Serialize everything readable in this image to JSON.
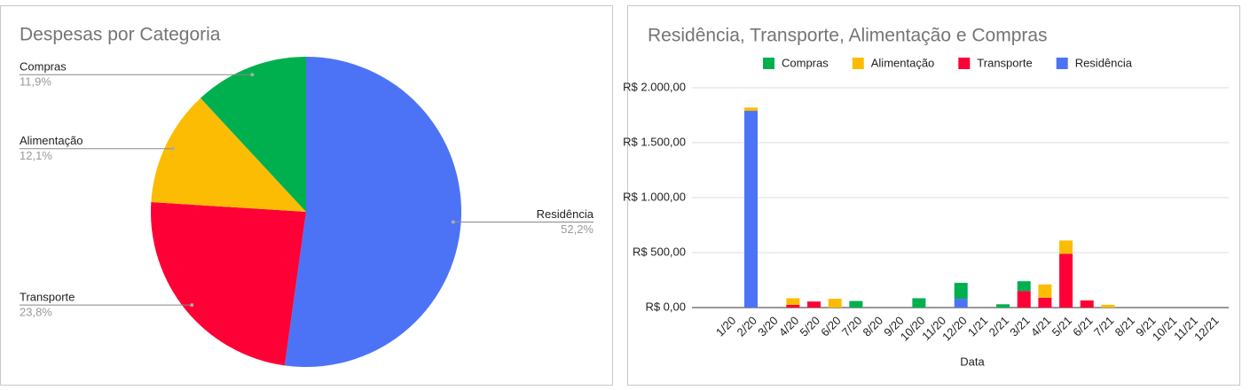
{
  "chart_data": [
    {
      "type": "pie",
      "title": "Despesas por Categoria",
      "categories": [
        "Residência",
        "Transporte",
        "Alimentação",
        "Compras"
      ],
      "values": [
        52.2,
        23.8,
        12.1,
        11.9
      ],
      "value_labels": [
        "52,2%",
        "23,8%",
        "12,1%",
        "11,9%"
      ],
      "colors": [
        "#4c73f6",
        "#fe0036",
        "#fcbc04",
        "#00b04f"
      ]
    },
    {
      "type": "bar",
      "stacked": true,
      "title": "Residência, Transporte, Alimentação e Compras",
      "x_label": "Data",
      "categories": [
        "1/20",
        "2/20",
        "3/20",
        "4/20",
        "5/20",
        "6/20",
        "7/20",
        "8/20",
        "9/20",
        "10/20",
        "11/20",
        "12/20",
        "1/21",
        "2/21",
        "3/21",
        "4/21",
        "5/21",
        "6/21",
        "7/21",
        "8/21",
        "9/21",
        "10/21",
        "11/21",
        "12/21"
      ],
      "series": [
        {
          "name": "Residência",
          "color": "#4c73f6",
          "values": [
            0,
            1790,
            0,
            0,
            0,
            0,
            0,
            0,
            0,
            0,
            0,
            80,
            0,
            0,
            0,
            0,
            0,
            0,
            0,
            0,
            0,
            0,
            0,
            0
          ]
        },
        {
          "name": "Transporte",
          "color": "#fe0036",
          "values": [
            0,
            0,
            0,
            25,
            55,
            0,
            0,
            0,
            0,
            0,
            0,
            0,
            0,
            0,
            150,
            90,
            490,
            65,
            0,
            0,
            0,
            0,
            0,
            0
          ]
        },
        {
          "name": "Alimentação",
          "color": "#fcbc04",
          "values": [
            0,
            30,
            0,
            60,
            0,
            80,
            0,
            0,
            0,
            0,
            0,
            0,
            0,
            0,
            0,
            120,
            120,
            0,
            25,
            0,
            0,
            0,
            0,
            0
          ]
        },
        {
          "name": "Compras",
          "color": "#00b04f",
          "values": [
            0,
            0,
            0,
            0,
            0,
            0,
            60,
            0,
            0,
            85,
            0,
            145,
            0,
            30,
            90,
            0,
            0,
            0,
            0,
            0,
            0,
            0,
            0,
            0
          ]
        }
      ],
      "legend_order": [
        3,
        2,
        1,
        0
      ],
      "ylim": [
        0,
        2000
      ],
      "yticks": [
        {
          "value": 0,
          "label": "R$ 0,00"
        },
        {
          "value": 500,
          "label": "R$ 500,00"
        },
        {
          "value": 1000,
          "label": "R$ 1.000,00"
        },
        {
          "value": 1500,
          "label": "R$ 1.500,00"
        },
        {
          "value": 2000,
          "label": "R$ 2.000,00"
        }
      ],
      "grid": true
    }
  ]
}
